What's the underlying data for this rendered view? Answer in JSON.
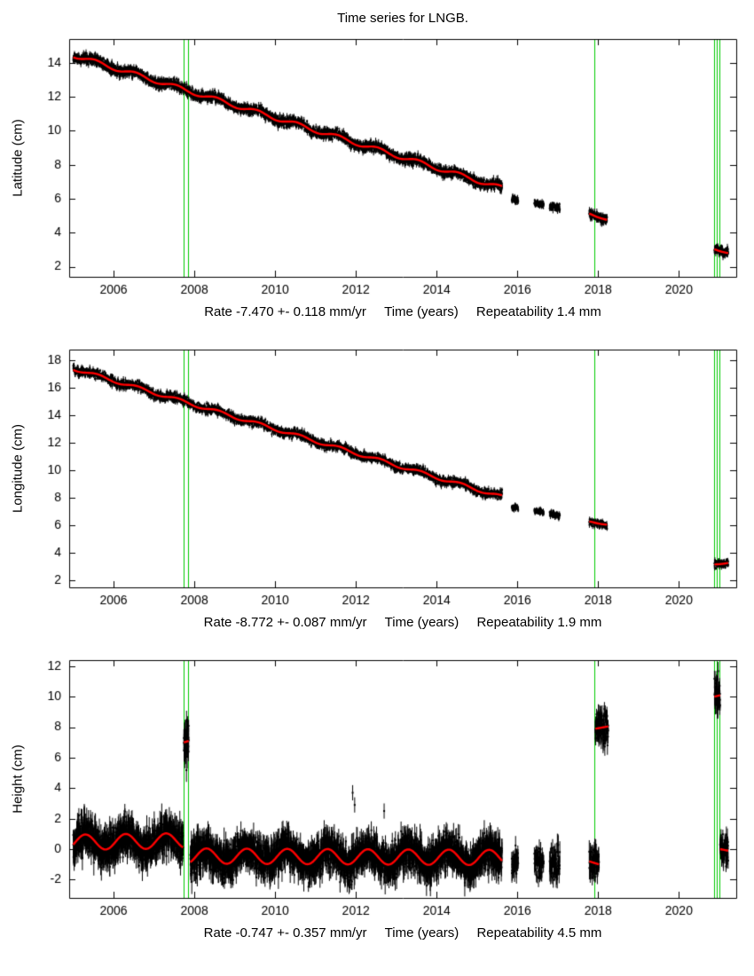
{
  "title": "Time series for LNGB.",
  "colors": {
    "background": "#ffffff",
    "data": "#000000",
    "trend": "#ff0000",
    "event_line": "#00cc00",
    "frame": "#000000"
  },
  "chart_data": [
    {
      "name": "latitude",
      "type": "scatter",
      "ylabel": "Latitude (cm)",
      "stats": {
        "rate": "Rate -7.470 +- 0.118 mm/yr",
        "time_label": "Time (years)",
        "repeatability": "Repeatability 1.4 mm"
      },
      "xlim": [
        2004.9,
        2021.42
      ],
      "ylim": [
        1.4,
        15.4
      ],
      "xticks": [
        2006,
        2008,
        2010,
        2012,
        2014,
        2016,
        2018,
        2020
      ],
      "yticks": [
        2,
        4,
        6,
        8,
        10,
        12,
        14
      ],
      "green_lines": [
        2007.74,
        2007.84,
        2017.9,
        2020.87,
        2020.94,
        2021.01
      ],
      "seed": 11,
      "seasonal_phase": 0.3,
      "segments": [
        {
          "t0": 2005.0,
          "t1": 2015.62,
          "v0": 14.45,
          "v1": 6.62,
          "seasonal": 0.13,
          "noise": 0.14,
          "errbar": 0.17,
          "density": 280,
          "trend": true
        },
        {
          "t0": 2015.86,
          "t1": 2016.02,
          "v0": 5.98,
          "v1": 5.92,
          "seasonal": 0.0,
          "noise": 0.1,
          "errbar": 0.15,
          "density": 220,
          "trend": false
        },
        {
          "t0": 2016.42,
          "t1": 2016.65,
          "v0": 5.75,
          "v1": 5.65,
          "seasonal": 0.0,
          "noise": 0.1,
          "errbar": 0.15,
          "density": 240,
          "trend": false
        },
        {
          "t0": 2016.8,
          "t1": 2017.05,
          "v0": 5.55,
          "v1": 5.45,
          "seasonal": 0.0,
          "noise": 0.1,
          "errbar": 0.15,
          "density": 240,
          "trend": false
        },
        {
          "t0": 2017.78,
          "t1": 2018.22,
          "v0": 5.12,
          "v1": 4.78,
          "seasonal": 0.05,
          "noise": 0.12,
          "errbar": 0.16,
          "density": 260,
          "trend": true
        },
        {
          "t0": 2020.88,
          "t1": 2021.22,
          "v0": 3.05,
          "v1": 2.82,
          "seasonal": 0.05,
          "noise": 0.12,
          "errbar": 0.16,
          "density": 260,
          "trend": true
        }
      ],
      "outliers": []
    },
    {
      "name": "longitude",
      "type": "scatter",
      "ylabel": "Longitude (cm)",
      "stats": {
        "rate": "Rate -8.772 +- 0.087 mm/yr",
        "time_label": "Time (years)",
        "repeatability": "Repeatability 1.9 mm"
      },
      "xlim": [
        2004.9,
        2021.42
      ],
      "ylim": [
        1.5,
        18.8
      ],
      "xticks": [
        2006,
        2008,
        2010,
        2012,
        2014,
        2016,
        2018,
        2020
      ],
      "yticks": [
        2,
        4,
        6,
        8,
        10,
        12,
        14,
        16,
        18
      ],
      "green_lines": [
        2007.74,
        2007.84,
        2017.9,
        2020.87,
        2020.94,
        2021.01
      ],
      "seed": 23,
      "seasonal_phase": 0.35,
      "segments": [
        {
          "t0": 2005.0,
          "t1": 2015.62,
          "v0": 17.42,
          "v1": 8.08,
          "seasonal": 0.12,
          "noise": 0.15,
          "errbar": 0.18,
          "density": 280,
          "trend": true
        },
        {
          "t0": 2015.86,
          "t1": 2016.02,
          "v0": 7.35,
          "v1": 7.28,
          "seasonal": 0.0,
          "noise": 0.1,
          "errbar": 0.15,
          "density": 220,
          "trend": false
        },
        {
          "t0": 2016.42,
          "t1": 2016.65,
          "v0": 7.05,
          "v1": 6.95,
          "seasonal": 0.0,
          "noise": 0.1,
          "errbar": 0.15,
          "density": 240,
          "trend": false
        },
        {
          "t0": 2016.8,
          "t1": 2017.05,
          "v0": 6.85,
          "v1": 6.72,
          "seasonal": 0.0,
          "noise": 0.1,
          "errbar": 0.15,
          "density": 240,
          "trend": false
        },
        {
          "t0": 2017.78,
          "t1": 2018.22,
          "v0": 6.28,
          "v1": 6.1,
          "seasonal": 0.05,
          "noise": 0.12,
          "errbar": 0.16,
          "density": 260,
          "trend": true
        },
        {
          "t0": 2020.88,
          "t1": 2021.22,
          "v0": 3.18,
          "v1": 3.32,
          "seasonal": 0.05,
          "noise": 0.12,
          "errbar": 0.16,
          "density": 260,
          "trend": true
        }
      ],
      "outliers": []
    },
    {
      "name": "height",
      "type": "scatter",
      "ylabel": "Height (cm)",
      "stats": {
        "rate": "Rate -0.747 +- 0.357 mm/yr",
        "time_label": "Time (years)",
        "repeatability": "Repeatability 4.5 mm"
      },
      "xlim": [
        2004.9,
        2021.42
      ],
      "ylim": [
        -3.2,
        12.4
      ],
      "xticks": [
        2006,
        2008,
        2010,
        2012,
        2014,
        2016,
        2018,
        2020
      ],
      "yticks": [
        -2,
        0,
        2,
        4,
        6,
        8,
        10,
        12
      ],
      "green_lines": [
        2007.74,
        2007.84,
        2017.9,
        2020.87,
        2020.94,
        2021.01
      ],
      "seed": 37,
      "seasonal_phase": 0.05,
      "segments": [
        {
          "t0": 2005.0,
          "t1": 2007.72,
          "v0": 0.45,
          "v1": 0.55,
          "seasonal": 0.5,
          "noise": 0.55,
          "errbar": 0.65,
          "density": 300,
          "trend": true
        },
        {
          "t0": 2007.74,
          "t1": 2007.86,
          "v0": 7.0,
          "v1": 7.1,
          "seasonal": 0.0,
          "noise": 0.75,
          "errbar": 0.6,
          "density": 420,
          "trend": true
        },
        {
          "t0": 2007.9,
          "t1": 2015.62,
          "v0": -0.45,
          "v1": -0.55,
          "seasonal": 0.5,
          "noise": 0.55,
          "errbar": 0.65,
          "density": 300,
          "trend": true
        },
        {
          "t0": 2015.86,
          "t1": 2016.02,
          "v0": -0.75,
          "v1": -0.65,
          "seasonal": 0.2,
          "noise": 0.45,
          "errbar": 0.5,
          "density": 240,
          "trend": false
        },
        {
          "t0": 2016.42,
          "t1": 2016.65,
          "v0": -0.9,
          "v1": -1.0,
          "seasonal": 0.0,
          "noise": 0.5,
          "errbar": 0.5,
          "density": 240,
          "trend": false
        },
        {
          "t0": 2016.8,
          "t1": 2017.05,
          "v0": -1.05,
          "v1": -0.95,
          "seasonal": 0.0,
          "noise": 0.5,
          "errbar": 0.55,
          "density": 240,
          "trend": false
        },
        {
          "t0": 2017.78,
          "t1": 2018.02,
          "v0": -0.8,
          "v1": -1.0,
          "seasonal": 0.0,
          "noise": 0.5,
          "errbar": 0.55,
          "density": 260,
          "trend": true
        },
        {
          "t0": 2017.93,
          "t1": 2018.25,
          "v0": 7.9,
          "v1": 8.05,
          "seasonal": 0.0,
          "noise": 0.55,
          "errbar": 0.5,
          "density": 300,
          "trend": true
        },
        {
          "t0": 2020.88,
          "t1": 2021.02,
          "v0": 10.0,
          "v1": 10.1,
          "seasonal": 0.0,
          "noise": 0.6,
          "errbar": 0.5,
          "density": 350,
          "trend": true
        },
        {
          "t0": 2021.02,
          "t1": 2021.22,
          "v0": 0.0,
          "v1": -0.1,
          "seasonal": 0.0,
          "noise": 0.5,
          "errbar": 0.5,
          "density": 300,
          "trend": true
        }
      ],
      "outliers": [
        [
          2011.92,
          3.7
        ],
        [
          2011.97,
          2.9
        ],
        [
          2012.7,
          2.5
        ]
      ]
    }
  ]
}
